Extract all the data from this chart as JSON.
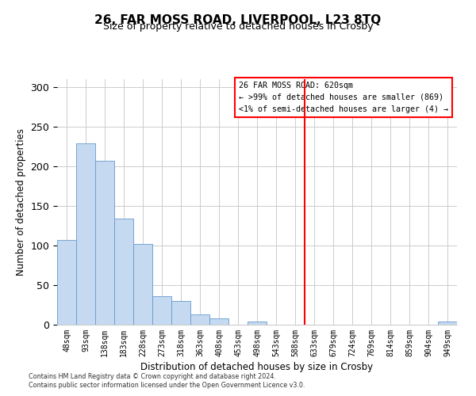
{
  "title": "26, FAR MOSS ROAD, LIVERPOOL, L23 8TQ",
  "subtitle": "Size of property relative to detached houses in Crosby",
  "xlabel": "Distribution of detached houses by size in Crosby",
  "ylabel": "Number of detached properties",
  "bar_labels": [
    "48sqm",
    "93sqm",
    "138sqm",
    "183sqm",
    "228sqm",
    "273sqm",
    "318sqm",
    "363sqm",
    "408sqm",
    "453sqm",
    "498sqm",
    "543sqm",
    "588sqm",
    "633sqm",
    "679sqm",
    "724sqm",
    "769sqm",
    "814sqm",
    "859sqm",
    "904sqm",
    "949sqm"
  ],
  "bar_heights": [
    107,
    229,
    207,
    134,
    102,
    36,
    30,
    13,
    8,
    0,
    4,
    0,
    0,
    0,
    0,
    0,
    0,
    0,
    0,
    0,
    4
  ],
  "bar_color": "#c5d9f0",
  "bar_edge_color": "#6699cc",
  "vline_index": 13.0,
  "vline_color": "red",
  "annotation_title": "26 FAR MOSS ROAD: 620sqm",
  "annotation_line1": "← >99% of detached houses are smaller (869)",
  "annotation_line2": "<1% of semi-detached houses are larger (4) →",
  "annotation_box_color": "white",
  "annotation_box_edge_color": "red",
  "ylim": [
    0,
    310
  ],
  "yticks": [
    0,
    50,
    100,
    150,
    200,
    250,
    300
  ],
  "footer1": "Contains HM Land Registry data © Crown copyright and database right 2024.",
  "footer2": "Contains public sector information licensed under the Open Government Licence v3.0.",
  "background_color": "white",
  "grid_color": "#cccccc",
  "title_fontsize": 11,
  "subtitle_fontsize": 9
}
